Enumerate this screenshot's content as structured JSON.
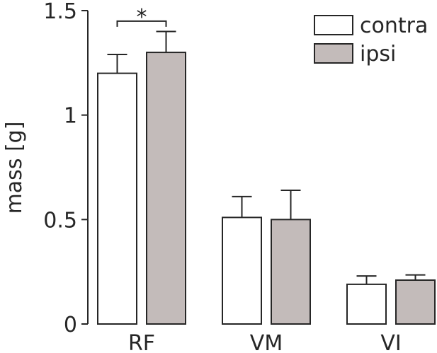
{
  "chart_data": {
    "type": "bar",
    "title": "",
    "xlabel": "",
    "ylabel": "mass [g]",
    "ylim": [
      0,
      1.5
    ],
    "grid": false,
    "legend_position": "top-right",
    "categories": [
      "RF",
      "VM",
      "VI"
    ],
    "y_ticks": [
      {
        "value": 0,
        "label": "0"
      },
      {
        "value": 0.5,
        "label": "0.5"
      },
      {
        "value": 1,
        "label": "1"
      },
      {
        "value": 1.5,
        "label": "1.5"
      }
    ],
    "series": [
      {
        "name": "contra",
        "color": "#ffffff",
        "values": [
          1.2,
          0.51,
          0.19
        ],
        "errors": [
          0.09,
          0.1,
          0.04
        ]
      },
      {
        "name": "ipsi",
        "color": "#c3bbba",
        "values": [
          1.3,
          0.5,
          0.21
        ],
        "errors": [
          0.1,
          0.14,
          0.025
        ]
      }
    ],
    "annotations": [
      {
        "text": "*",
        "category": "RF",
        "between_series": [
          "contra",
          "ipsi"
        ],
        "y": 1.47
      }
    ]
  }
}
